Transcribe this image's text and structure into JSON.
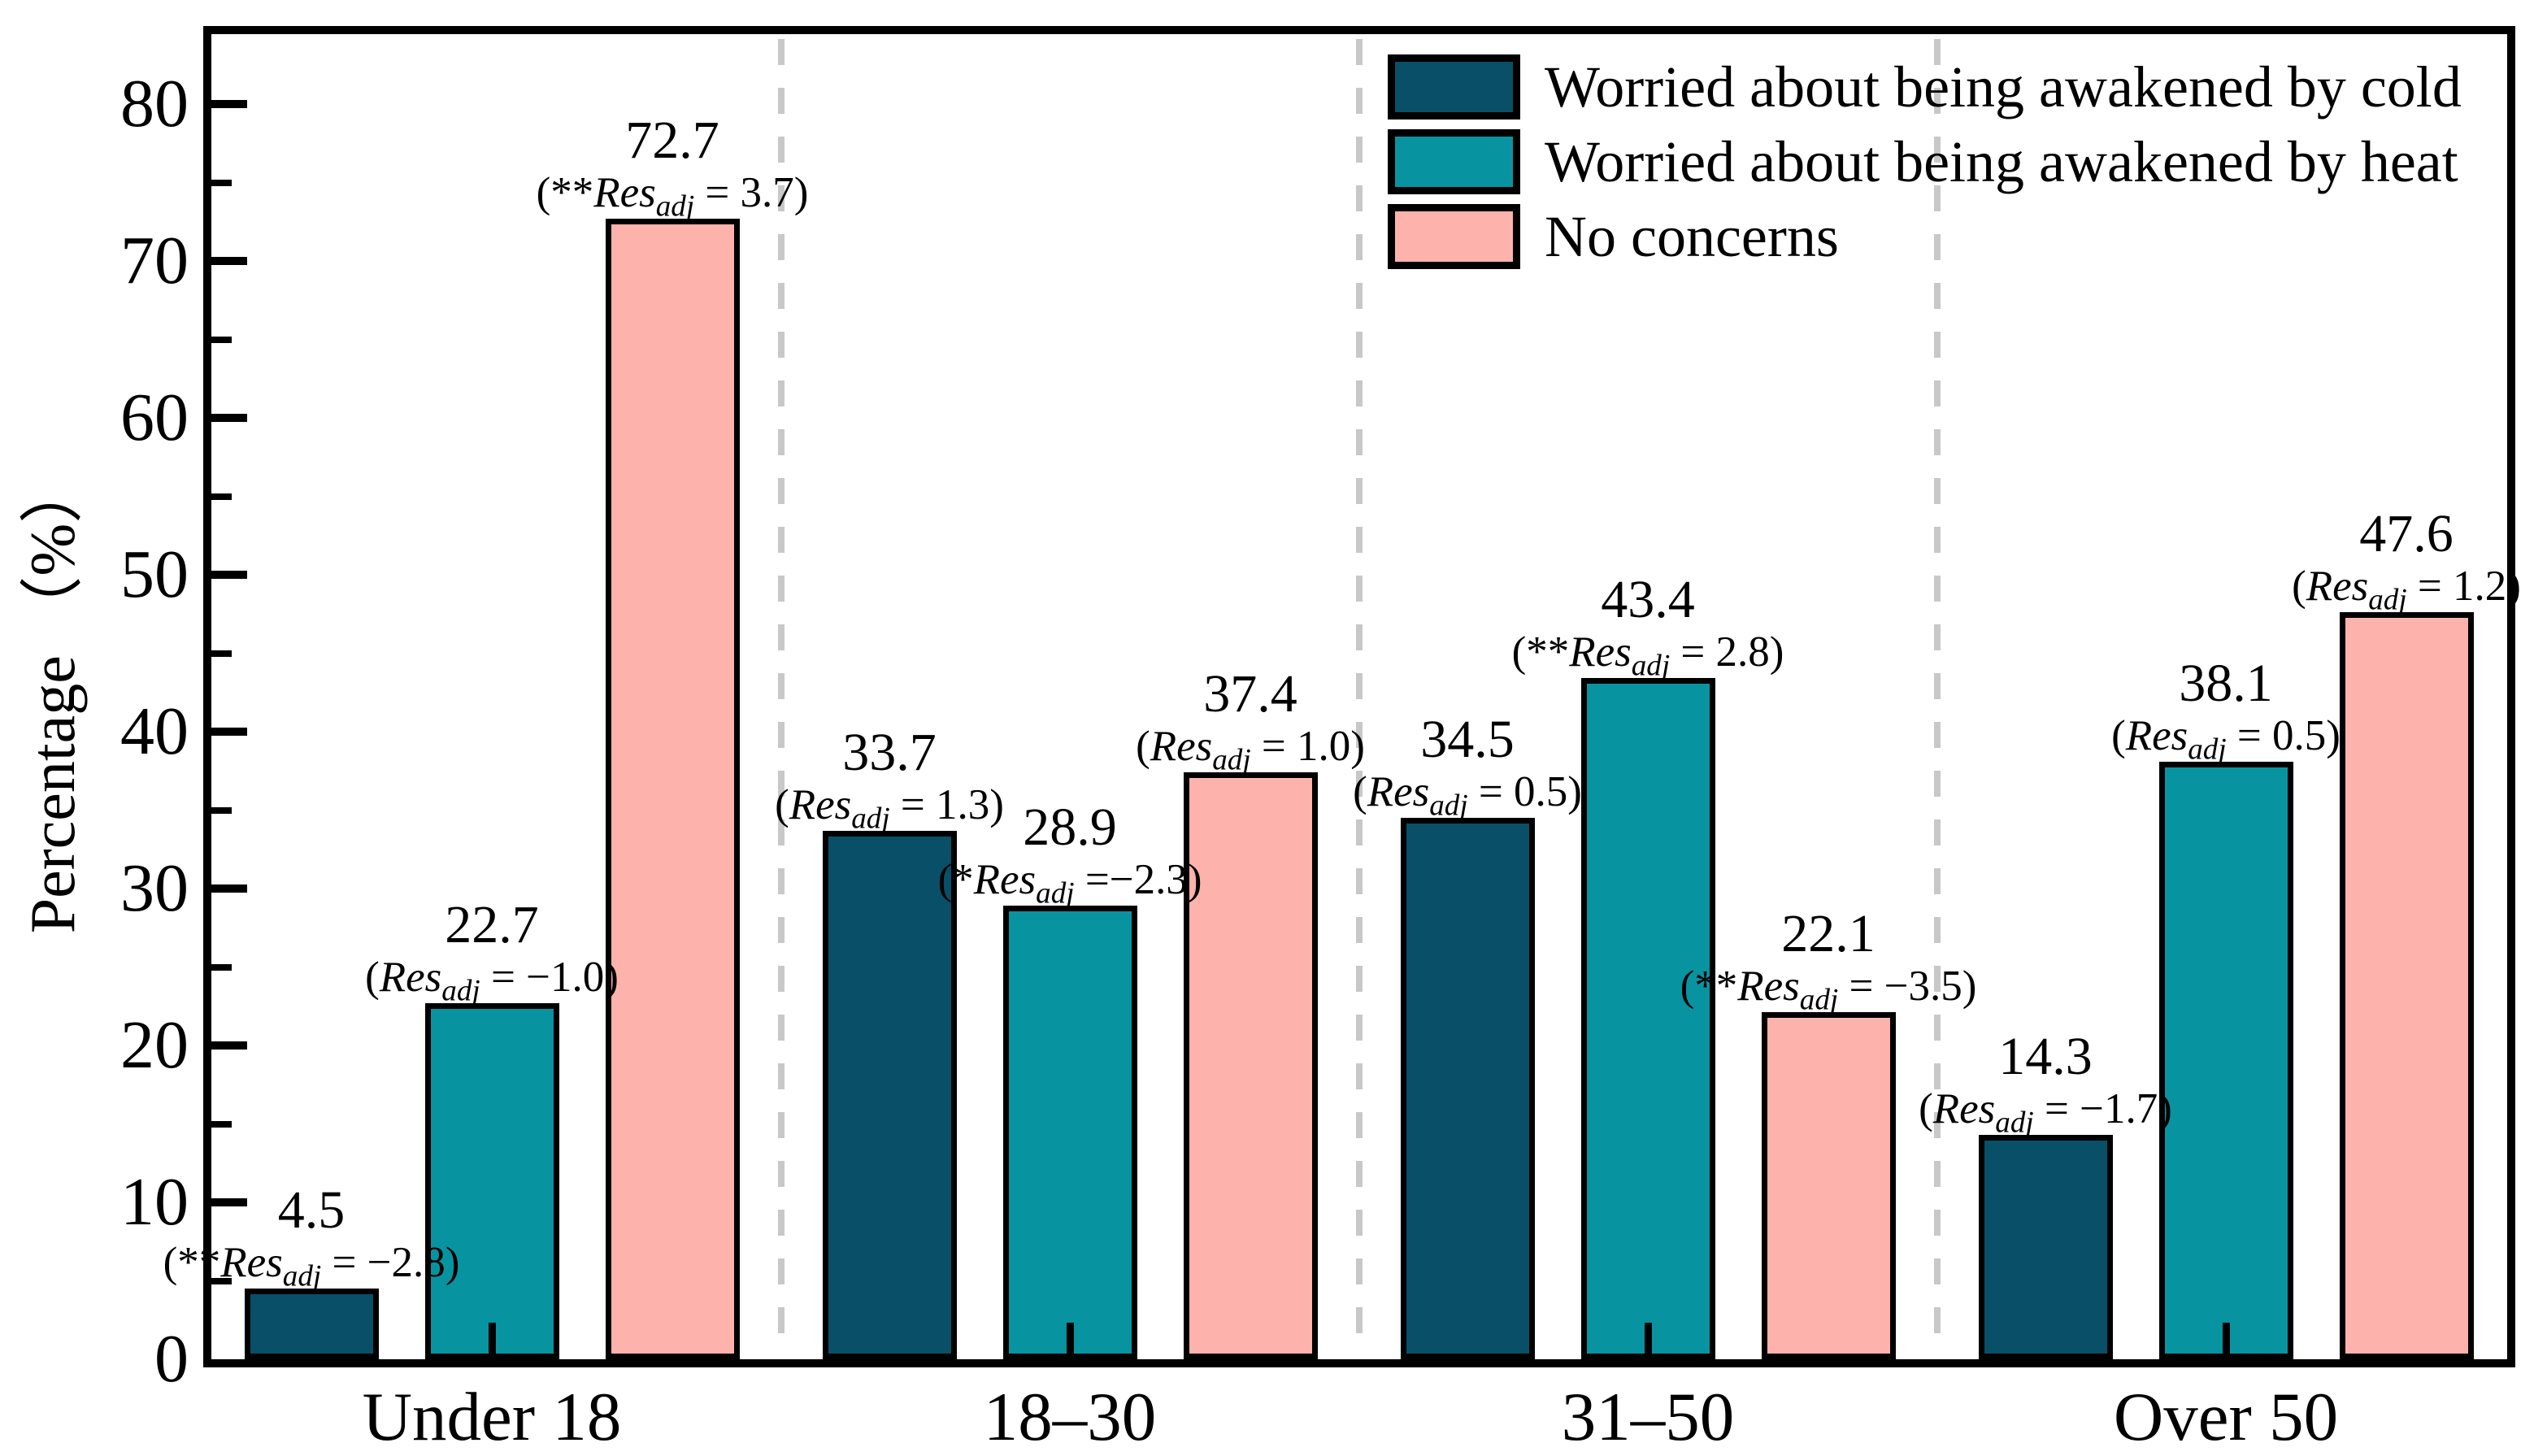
{
  "chart_data": {
    "type": "bar",
    "title": "",
    "xlabel": "",
    "ylabel": "Percentage （%）",
    "ylim": [
      0,
      85
    ],
    "yticks": [
      0,
      10,
      20,
      30,
      40,
      50,
      60,
      70,
      80
    ],
    "yticks_minor": [
      5,
      15,
      25,
      35,
      45,
      55,
      65,
      75
    ],
    "categories": [
      "Under 18",
      "18–30",
      "31–50",
      "Over 50"
    ],
    "legend_position": "upper right inside",
    "group_separator_style": "dashed gray vertical lines",
    "separator_color": "#c8c8c8",
    "res_term": {
      "open": "(",
      "base": "Res",
      "sub": "adj",
      "close": ")"
    },
    "series": [
      {
        "name": "Worried about being awakened by cold",
        "color": "#094f68",
        "values": [
          4.5,
          33.7,
          34.5,
          14.3
        ],
        "annotations": [
          {
            "stars": "**",
            "rest": " = −2.8"
          },
          {
            "stars": "",
            "rest": " = 1.3"
          },
          {
            "stars": "",
            "rest": " = 0.5"
          },
          {
            "stars": "",
            "rest": " = −1.7"
          }
        ]
      },
      {
        "name": "Worried about being awakened by heat",
        "color": "#0794a0",
        "values": [
          22.7,
          28.9,
          43.4,
          38.1
        ],
        "annotations": [
          {
            "stars": "",
            "rest": " = −1.0"
          },
          {
            "stars": "*",
            "rest": " =−2.3"
          },
          {
            "stars": "**",
            "rest": " = 2.8"
          },
          {
            "stars": "",
            "rest": " = 0.5"
          }
        ]
      },
      {
        "name": "No concerns",
        "color": "#feb2ac",
        "values": [
          72.7,
          37.4,
          22.1,
          47.6
        ],
        "annotations": [
          {
            "stars": "**",
            "rest": " = 3.7"
          },
          {
            "stars": "",
            "rest": " = 1.0"
          },
          {
            "stars": "**",
            "rest": " = −3.5"
          },
          {
            "stars": "",
            "rest": " = 1.2"
          }
        ]
      }
    ]
  }
}
